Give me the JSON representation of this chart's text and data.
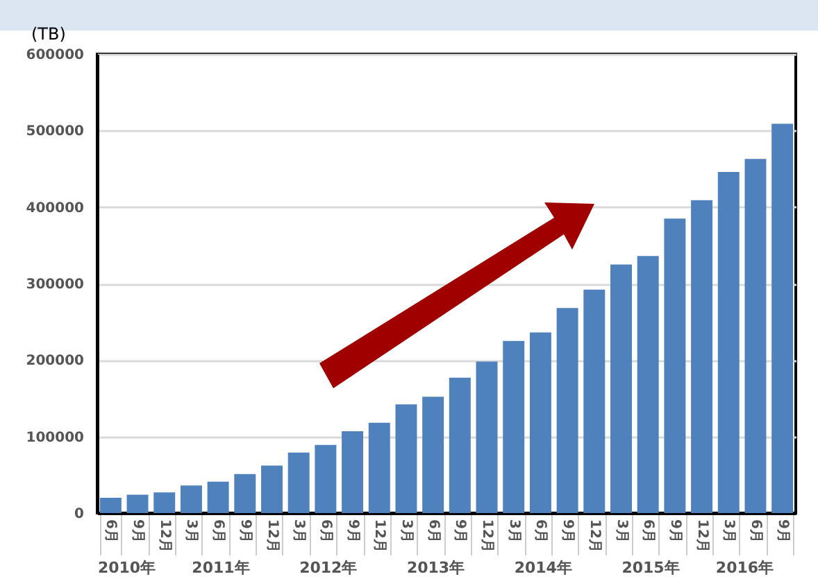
{
  "chart_data": {
    "type": "bar",
    "ylabel": "(TB)",
    "categories": [
      "6月",
      "9月",
      "12月",
      "3月",
      "6月",
      "9月",
      "12月",
      "3月",
      "6月",
      "9月",
      "12月",
      "3月",
      "6月",
      "9月",
      "12月",
      "3月",
      "6月",
      "9月",
      "12月",
      "3月",
      "6月",
      "9月",
      "12月",
      "3月",
      "6月",
      "9月"
    ],
    "values": [
      20000,
      24000,
      27000,
      36000,
      41000,
      51000,
      62000,
      79000,
      89000,
      107000,
      118000,
      142000,
      152000,
      177000,
      198000,
      225000,
      236000,
      268000,
      292000,
      325000,
      336000,
      385000,
      409000,
      446000,
      463000,
      509000
    ],
    "color": "#4f81bd",
    "annotations": [
      "2010年",
      "2011年",
      "2012年",
      "2013年",
      "2014年",
      "2015年",
      "2016年"
    ],
    "ylim": [
      0,
      600000
    ],
    "yticks": [
      0,
      100000,
      200000,
      300000,
      400000,
      500000,
      600000
    ],
    "grid": "y"
  }
}
